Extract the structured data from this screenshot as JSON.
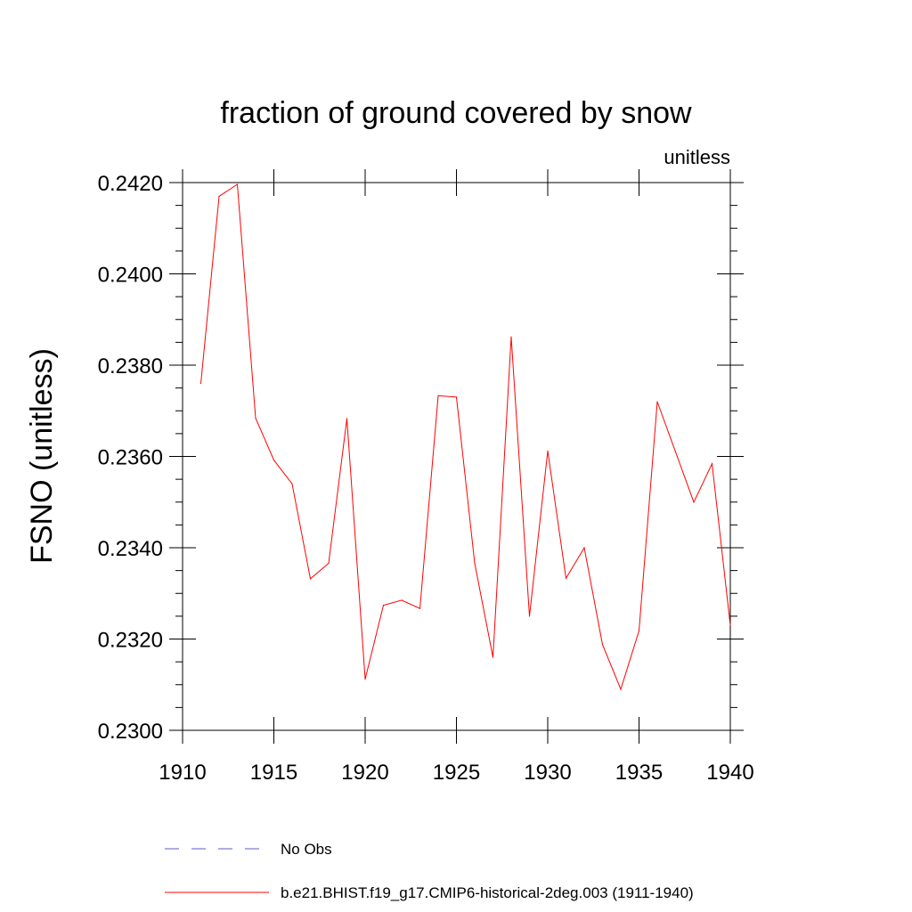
{
  "chart_data": {
    "type": "line",
    "title": "fraction of ground covered by snow",
    "units_label": "unitless",
    "xlabel": "",
    "ylabel": "FSNO  (unitless)",
    "xlim": [
      1910,
      1940
    ],
    "ylim": [
      0.23,
      0.242
    ],
    "x_ticks": [
      "1910",
      "1915",
      "1920",
      "1925",
      "1930",
      "1935",
      "1940"
    ],
    "y_ticks": [
      "0.2300",
      "0.2320",
      "0.2340",
      "0.2360",
      "0.2380",
      "0.2400",
      "0.2420"
    ],
    "x": [
      1911,
      1912,
      1913,
      1914,
      1915,
      1916,
      1917,
      1918,
      1919,
      1920,
      1921,
      1922,
      1923,
      1924,
      1925,
      1926,
      1927,
      1928,
      1929,
      1930,
      1931,
      1932,
      1933,
      1934,
      1935,
      1936,
      1937,
      1938,
      1939,
      1940
    ],
    "series": [
      {
        "name": "b.e21.BHIST.f19_g17.CMIP6-historical-2deg.003 (1911-1940)",
        "color": "#ff0000",
        "values": [
          0.2376,
          0.2417,
          0.24196,
          0.23684,
          0.23592,
          0.2354,
          0.23332,
          0.23366,
          0.23683,
          0.23112,
          0.23274,
          0.23285,
          0.23267,
          0.23733,
          0.2373,
          0.23366,
          0.2316,
          0.23862,
          0.2325,
          0.23612,
          0.23333,
          0.234,
          0.23188,
          0.2309,
          0.23218,
          0.2372,
          0.2361,
          0.235,
          0.23584,
          0.2323
        ]
      }
    ],
    "legend": [
      {
        "label": "No Obs",
        "color": "#5b5bc8",
        "style": "dashed"
      },
      {
        "label": "b.e21.BHIST.f19_g17.CMIP6-historical-2deg.003 (1911-1940)",
        "color": "#ff0000",
        "style": "solid"
      }
    ],
    "grid": false,
    "legend_position": "bottom"
  }
}
